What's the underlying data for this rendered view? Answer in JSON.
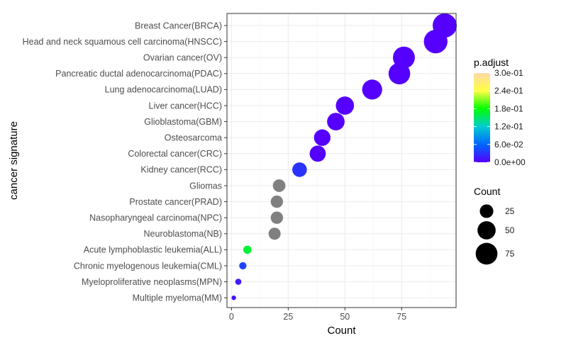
{
  "chart_data": {
    "type": "scatter",
    "xlabel": "Count",
    "ylabel": "cancer signature",
    "xlim": [
      -2,
      99
    ],
    "xticks": [
      0,
      25,
      50,
      75
    ],
    "grid": true,
    "categories": [
      "Breast Cancer(BRCA)",
      "Head and neck squamous cell carcinoma(HNSCC)",
      "Ovarian cancer(OV)",
      "Pancreatic ductal adenocarcinoma(PDAC)",
      "Lung adenocarcinoma(LUAD)",
      "Liver cancer(HCC)",
      "Glioblastoma(GBM)",
      "Osteosarcoma",
      "Colorectal cancer(CRC)",
      "Kidney cancer(RCC)",
      "Gliomas",
      "Prostate cancer(PRAD)",
      "Nasopharyngeal carcinoma(NPC)",
      "Neuroblastoma(NB)",
      "Acute lymphoblastic leukemia(ALL)",
      "Chronic myelogenous leukemia(CML)",
      "Myeloproliferative neoplasms(MPN)",
      "Multiple myeloma(MM)"
    ],
    "points": [
      {
        "category": "Breast Cancer(BRCA)",
        "count": 94,
        "p_adjust": 0.0,
        "na": false
      },
      {
        "category": "Head and neck squamous cell carcinoma(HNSCC)",
        "count": 90,
        "p_adjust": 0.0,
        "na": false
      },
      {
        "category": "Ovarian cancer(OV)",
        "count": 76,
        "p_adjust": 0.0,
        "na": false
      },
      {
        "category": "Pancreatic ductal adenocarcinoma(PDAC)",
        "count": 74,
        "p_adjust": 0.0,
        "na": false
      },
      {
        "category": "Lung adenocarcinoma(LUAD)",
        "count": 62,
        "p_adjust": 0.0,
        "na": false
      },
      {
        "category": "Liver cancer(HCC)",
        "count": 50,
        "p_adjust": 0.0,
        "na": false
      },
      {
        "category": "Glioblastoma(GBM)",
        "count": 46,
        "p_adjust": 0.0,
        "na": false
      },
      {
        "category": "Osteosarcoma",
        "count": 40,
        "p_adjust": 0.0,
        "na": false
      },
      {
        "category": "Colorectal cancer(CRC)",
        "count": 38,
        "p_adjust": 0.0,
        "na": false
      },
      {
        "category": "Kidney cancer(RCC)",
        "count": 30,
        "p_adjust": 0.03,
        "na": false
      },
      {
        "category": "Gliomas",
        "count": 21,
        "p_adjust": null,
        "na": true
      },
      {
        "category": "Prostate cancer(PRAD)",
        "count": 20,
        "p_adjust": null,
        "na": true
      },
      {
        "category": "Nasopharyngeal carcinoma(NPC)",
        "count": 20,
        "p_adjust": null,
        "na": true
      },
      {
        "category": "Neuroblastoma(NB)",
        "count": 19,
        "p_adjust": null,
        "na": true
      },
      {
        "category": "Acute lymphoblastic leukemia(ALL)",
        "count": 7,
        "p_adjust": 0.165,
        "na": false
      },
      {
        "category": "Chronic myelogenous leukemia(CML)",
        "count": 5,
        "p_adjust": 0.04,
        "na": false
      },
      {
        "category": "Myeloproliferative neoplasms(MPN)",
        "count": 3,
        "p_adjust": 0.015,
        "na": false
      },
      {
        "category": "Multiple myeloma(MM)",
        "count": 1,
        "p_adjust": 0.01,
        "na": false
      }
    ],
    "color_legend": {
      "title": "p.adjust",
      "range": [
        0,
        0.3
      ],
      "tick_values": [
        0.3,
        0.24,
        0.18,
        0.12,
        0.06,
        0.0
      ],
      "tick_labels": [
        "3.0e-01",
        "2.4e-01",
        "1.8e-01",
        "1.2e-01",
        "6.0e-02",
        "0.0e+00"
      ],
      "gradient_stops": [
        {
          "value": 0.0,
          "color": "#5500ff"
        },
        {
          "value": 0.06,
          "color": "#0066ff"
        },
        {
          "value": 0.12,
          "color": "#00ccd0"
        },
        {
          "value": 0.18,
          "color": "#00ff00"
        },
        {
          "value": 0.24,
          "color": "#ffff44"
        },
        {
          "value": 0.3,
          "color": "#ffd9a8"
        }
      ],
      "na_color": "#808080"
    },
    "size_legend": {
      "title": "Count",
      "entries": [
        {
          "label": "25",
          "value": 25
        },
        {
          "label": "50",
          "value": 50
        },
        {
          "label": "75",
          "value": 75
        }
      ]
    },
    "colors": {
      "grid": "#ebebeb",
      "panel_border": "#333333",
      "text": "#4d4d4d"
    }
  }
}
